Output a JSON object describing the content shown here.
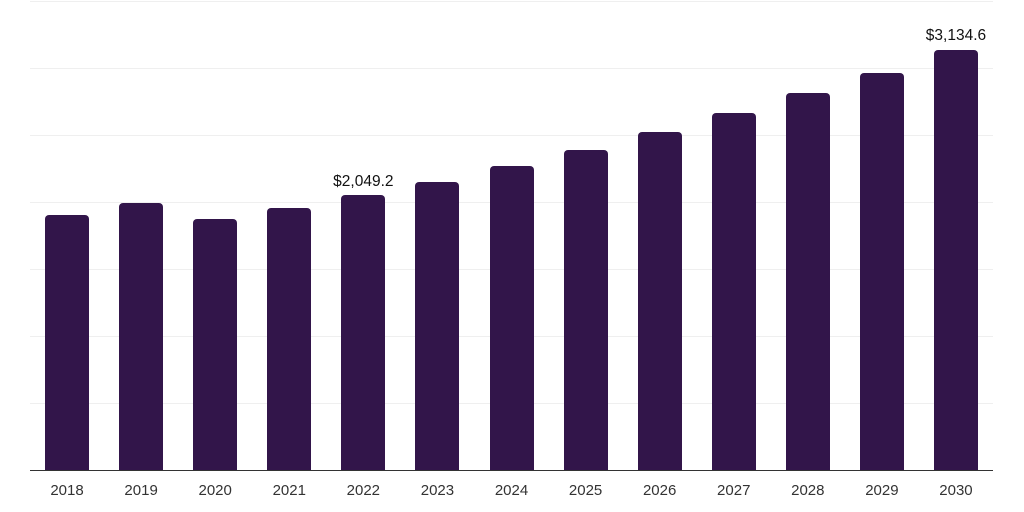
{
  "chart_data": {
    "type": "bar",
    "title": "",
    "xlabel": "",
    "ylabel": "",
    "categories": [
      "2018",
      "2019",
      "2020",
      "2021",
      "2022",
      "2023",
      "2024",
      "2025",
      "2026",
      "2027",
      "2028",
      "2029",
      "2030"
    ],
    "values": [
      1903,
      1990,
      1871,
      1953,
      2049.2,
      2151,
      2271,
      2388,
      2524,
      2662,
      2811,
      2965,
      3134.6
    ],
    "data_labels": {
      "2022": "$2,049.2",
      "2030": "$3,134.6"
    },
    "ylim": [
      0,
      3500
    ],
    "grid_step": 500,
    "gridlines": "horizontal",
    "y_tick_labels_visible": false,
    "legend": "none",
    "colors": {
      "bar": "#32154a",
      "axis_line": "#333333",
      "gridline": "#efefef",
      "tick_label": "#333333",
      "data_label": "#111111",
      "background": "#ffffff"
    }
  }
}
